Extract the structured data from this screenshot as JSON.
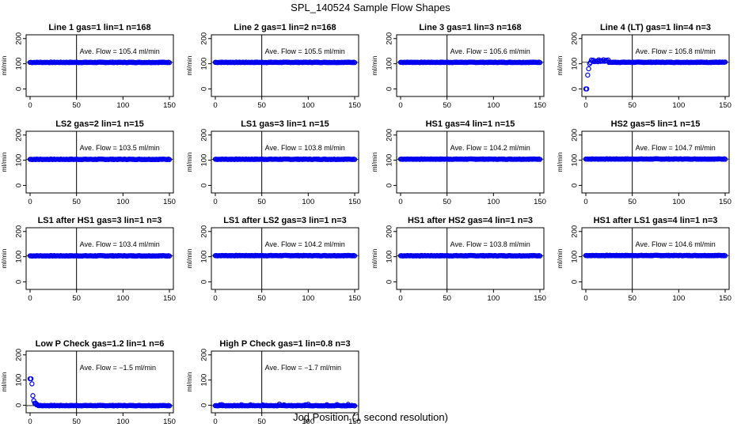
{
  "page": {
    "title": "SPL_140524  Sample Flow Shapes",
    "xlabel": "Jog Position (1 second resolution)"
  },
  "colors": {
    "points": "#0000ee",
    "axis": "#000000"
  },
  "chart_data": [
    {
      "type": "scatter",
      "title": "Line 1 gas=1 lin=1 n=168",
      "annotation": "Ave. Flow =  105.4  ml/min",
      "ylabel": "ml/min",
      "xlim": [
        0,
        150
      ],
      "ylim": [
        -30,
        215
      ],
      "xticks": [
        0,
        50,
        100,
        150
      ],
      "yticks": [
        0,
        100,
        200
      ],
      "vline": 50,
      "level": 105.4,
      "shape": "flat"
    },
    {
      "type": "scatter",
      "title": "Line 2 gas=1 lin=2 n=168",
      "annotation": "Ave. Flow =  105.5  ml/min",
      "ylabel": "ml/min",
      "xlim": [
        0,
        150
      ],
      "ylim": [
        -30,
        215
      ],
      "xticks": [
        0,
        50,
        100,
        150
      ],
      "yticks": [
        0,
        100,
        200
      ],
      "vline": 50,
      "level": 105.5,
      "shape": "flat"
    },
    {
      "type": "scatter",
      "title": "Line 3 gas=1 lin=3 n=168",
      "annotation": "Ave. Flow =  105.6  ml/min",
      "ylabel": "ml/min",
      "xlim": [
        0,
        150
      ],
      "ylim": [
        -30,
        215
      ],
      "xticks": [
        0,
        50,
        100,
        150
      ],
      "yticks": [
        0,
        100,
        200
      ],
      "vline": 50,
      "level": 105.6,
      "shape": "flat"
    },
    {
      "type": "scatter",
      "title": "Line 4 (LT) gas=1 lin=4 n=3",
      "annotation": "Ave. Flow =  105.8  ml/min",
      "ylabel": "ml/min",
      "xlim": [
        0,
        150
      ],
      "ylim": [
        -30,
        215
      ],
      "xticks": [
        0,
        50,
        100,
        150
      ],
      "yticks": [
        0,
        100,
        200
      ],
      "vline": 50,
      "level": 105.8,
      "shape": "rise"
    },
    {
      "type": "scatter",
      "title": "LS2 gas=2 lin=1 n=15",
      "annotation": "Ave. Flow =  103.5  ml/min",
      "ylabel": "ml/min",
      "xlim": [
        0,
        150
      ],
      "ylim": [
        -30,
        215
      ],
      "xticks": [
        0,
        50,
        100,
        150
      ],
      "yticks": [
        0,
        100,
        200
      ],
      "vline": 50,
      "level": 103.5,
      "shape": "flat"
    },
    {
      "type": "scatter",
      "title": "LS1 gas=3 lin=1 n=15",
      "annotation": "Ave. Flow =  103.8  ml/min",
      "ylabel": "ml/min",
      "xlim": [
        0,
        150
      ],
      "ylim": [
        -30,
        215
      ],
      "xticks": [
        0,
        50,
        100,
        150
      ],
      "yticks": [
        0,
        100,
        200
      ],
      "vline": 50,
      "level": 103.8,
      "shape": "flat"
    },
    {
      "type": "scatter",
      "title": "HS1 gas=4 lin=1 n=15",
      "annotation": "Ave. Flow =  104.2  ml/min",
      "ylabel": "ml/min",
      "xlim": [
        0,
        150
      ],
      "ylim": [
        -30,
        215
      ],
      "xticks": [
        0,
        50,
        100,
        150
      ],
      "yticks": [
        0,
        100,
        200
      ],
      "vline": 50,
      "level": 104.2,
      "shape": "flat"
    },
    {
      "type": "scatter",
      "title": "HS2 gas=5 lin=1 n=15",
      "annotation": "Ave. Flow =  104.7  ml/min",
      "ylabel": "ml/min",
      "xlim": [
        0,
        150
      ],
      "ylim": [
        -30,
        215
      ],
      "xticks": [
        0,
        50,
        100,
        150
      ],
      "yticks": [
        0,
        100,
        200
      ],
      "vline": 50,
      "level": 104.7,
      "shape": "flat"
    },
    {
      "type": "scatter",
      "title": "LS1 after HS1 gas=3 lin=1 n=3",
      "annotation": "Ave. Flow =  103.4  ml/min",
      "ylabel": "ml/min",
      "xlim": [
        0,
        150
      ],
      "ylim": [
        -30,
        215
      ],
      "xticks": [
        0,
        50,
        100,
        150
      ],
      "yticks": [
        0,
        100,
        200
      ],
      "vline": 50,
      "level": 103.4,
      "shape": "flat"
    },
    {
      "type": "scatter",
      "title": "LS1 after LS2 gas=3 lin=1 n=3",
      "annotation": "Ave. Flow =  104.2  ml/min",
      "ylabel": "ml/min",
      "xlim": [
        0,
        150
      ],
      "ylim": [
        -30,
        215
      ],
      "xticks": [
        0,
        50,
        100,
        150
      ],
      "yticks": [
        0,
        100,
        200
      ],
      "vline": 50,
      "level": 104.2,
      "shape": "flat"
    },
    {
      "type": "scatter",
      "title": "HS1 after HS2 gas=4 lin=1 n=3",
      "annotation": "Ave. Flow =  103.8  ml/min",
      "ylabel": "ml/min",
      "xlim": [
        0,
        150
      ],
      "ylim": [
        -30,
        215
      ],
      "xticks": [
        0,
        50,
        100,
        150
      ],
      "yticks": [
        0,
        100,
        200
      ],
      "vline": 50,
      "level": 103.8,
      "shape": "flat"
    },
    {
      "type": "scatter",
      "title": "HS1 after LS1 gas=4 lin=1 n=3",
      "annotation": "Ave. Flow =  104.6  ml/min",
      "ylabel": "ml/min",
      "xlim": [
        0,
        150
      ],
      "ylim": [
        -30,
        215
      ],
      "xticks": [
        0,
        50,
        100,
        150
      ],
      "yticks": [
        0,
        100,
        200
      ],
      "vline": 50,
      "level": 104.6,
      "shape": "flat"
    },
    {
      "type": "scatter",
      "title": "Low P Check gas=1.2 lin=1 n=6",
      "annotation": "Ave. Flow =  −1.5  ml/min",
      "ylabel": "ml/min",
      "xlim": [
        0,
        150
      ],
      "ylim": [
        -30,
        215
      ],
      "xticks": [
        0,
        50,
        100,
        150
      ],
      "yticks": [
        0,
        100,
        200
      ],
      "vline": 50,
      "level": -1.5,
      "shape": "decay"
    },
    {
      "type": "scatter",
      "title": "High P Check gas=1 lin=0.8 n=3",
      "annotation": "Ave. Flow =  −1.7  ml/min",
      "ylabel": "ml/min",
      "xlim": [
        0,
        150
      ],
      "ylim": [
        -30,
        215
      ],
      "xticks": [
        0,
        50,
        100,
        150
      ],
      "yticks": [
        0,
        100,
        200
      ],
      "vline": 50,
      "level": -1.7,
      "shape": "noisyflat"
    }
  ]
}
